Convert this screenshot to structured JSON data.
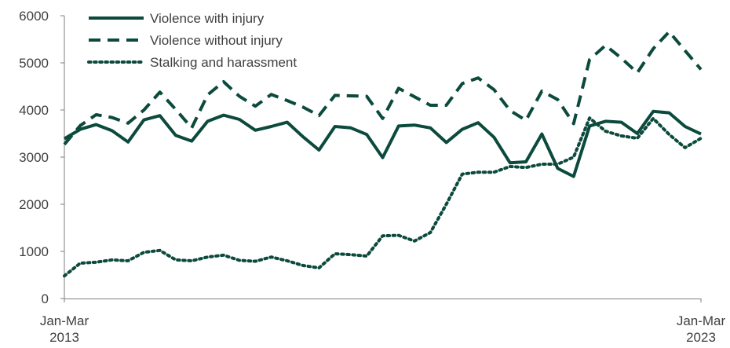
{
  "colors": {
    "series": "#0b4a3c",
    "axis": "#7f7f7f",
    "text": "#404040"
  },
  "chart_data": {
    "type": "line",
    "title": "",
    "xlabel": "",
    "ylabel": "",
    "ylim": [
      0,
      6000
    ],
    "yticks": [
      0,
      1000,
      2000,
      3000,
      4000,
      5000,
      6000
    ],
    "grid": false,
    "legend_position": "top-left",
    "x_tick_labels": [
      {
        "line1": "Jan-Mar",
        "line2": "2013",
        "index": 0
      },
      {
        "line1": "Jan-Mar",
        "line2": "2023",
        "index": 40
      }
    ],
    "series": [
      {
        "name": "Violence with injury",
        "style": "solid",
        "values": [
          3390,
          3590,
          3690,
          3560,
          3320,
          3790,
          3880,
          3460,
          3340,
          3760,
          3890,
          3800,
          3570,
          3650,
          3740,
          3430,
          3150,
          3650,
          3620,
          3480,
          2990,
          3660,
          3680,
          3620,
          3310,
          3590,
          3730,
          3420,
          2880,
          2900,
          3490,
          2760,
          2590,
          3660,
          3760,
          3740,
          3500,
          3970,
          3940,
          3650,
          3490
        ]
      },
      {
        "name": "Violence without injury",
        "style": "dashed",
        "values": [
          3270,
          3670,
          3900,
          3840,
          3720,
          4000,
          4380,
          4010,
          3620,
          4320,
          4600,
          4290,
          4080,
          4330,
          4200,
          4060,
          3880,
          4310,
          4300,
          4290,
          3820,
          4460,
          4280,
          4100,
          4100,
          4560,
          4680,
          4430,
          3990,
          3780,
          4400,
          4220,
          3710,
          5070,
          5370,
          5100,
          4790,
          5300,
          5660,
          5260,
          4860
        ]
      },
      {
        "name": "Stalking and harassment",
        "style": "dotted",
        "values": [
          480,
          750,
          770,
          820,
          800,
          980,
          1020,
          820,
          800,
          880,
          920,
          810,
          790,
          880,
          800,
          700,
          650,
          950,
          930,
          900,
          1330,
          1340,
          1220,
          1400,
          2000,
          2640,
          2680,
          2680,
          2800,
          2780,
          2850,
          2850,
          3000,
          3830,
          3550,
          3450,
          3400,
          3820,
          3480,
          3200,
          3400
        ]
      }
    ]
  }
}
